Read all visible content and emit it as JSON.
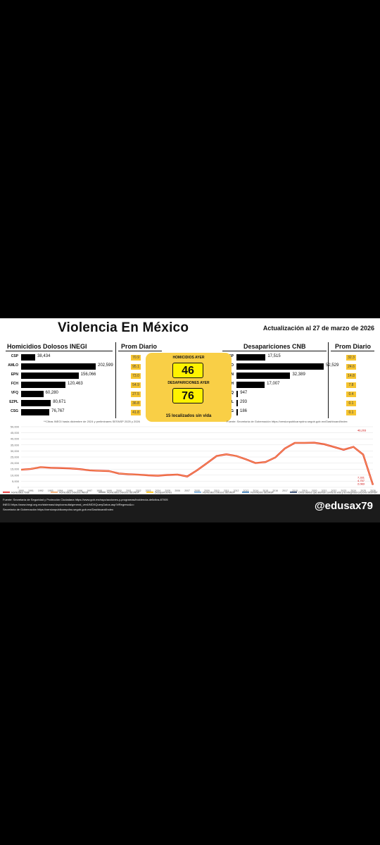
{
  "header": {
    "title": "Violencia En México",
    "updated": "Actualización al 27 de marzo de 2026"
  },
  "homicidios": {
    "title": "Homicidios Dolosos INEGI",
    "prom_title": "Prom Diario",
    "note": "**Cifras INEGI hasta diciembre de 2024 y preliminares SESNSP 2025 y 2026",
    "rows": [
      {
        "label": "CSP",
        "value_text": "38,434",
        "value": 38434,
        "prom": "70.9"
      },
      {
        "label": "AMLO",
        "value_text": "202,599",
        "value": 202599,
        "prom": "95.1"
      },
      {
        "label": "EPN",
        "value_text": "156,066",
        "value": 156066,
        "prom": "73.0"
      },
      {
        "label": "FCH",
        "value_text": "120,463",
        "value": 120463,
        "prom": "54.9"
      },
      {
        "label": "VFQ",
        "value_text": "60,280",
        "value": 60280,
        "prom": "27.5"
      },
      {
        "label": "EZPL",
        "value_text": "80,671",
        "value": 80671,
        "prom": "36.8"
      },
      {
        "label": "CSG",
        "value_text": "76,767",
        "value": 76767,
        "prom": "41.8"
      }
    ]
  },
  "desapariciones": {
    "title": "Desapariciones CNB",
    "prom_title": "Prom Diario",
    "note": "Fuente: Secretaría de Gobernación https://versionpublicarnpdno.segob.gob.mx/Dashboard/Index",
    "rows": [
      {
        "label": "CSP",
        "value_text": "17,515",
        "value": 17515,
        "prom": "32.3"
      },
      {
        "label": "AMLO",
        "value_text": "52,529",
        "value": 52529,
        "prom": "24.6"
      },
      {
        "label": "EPN",
        "value_text": "32,389",
        "value": 32389,
        "prom": "14.8"
      },
      {
        "label": "FCH",
        "value_text": "17,007",
        "value": 17007,
        "prom": "7.8"
      },
      {
        "label": "VHQ",
        "value_text": "947",
        "value": 947,
        "prom": "0.4"
      },
      {
        "label": "EZPL",
        "value_text": "293",
        "value": 293,
        "prom": "0.1"
      },
      {
        "label": "CSG",
        "value_text": "186",
        "value": 186,
        "prom": "0.1"
      }
    ]
  },
  "center": {
    "hom_label": "HOMICIDIOS AYER",
    "hom_value": "46",
    "des_label": "DESAPARICIONES AYER",
    "des_value": "76",
    "footer": "15 localizados sin vida"
  },
  "colors": {
    "accent_yellow": "#f9cf46",
    "number_yellow": "#fff200",
    "homicidios_total": "#e41a1c",
    "dark": "#111111"
  },
  "chart_data": {
    "type": "line",
    "x": [
      "1990",
      "1991",
      "1992",
      "1993",
      "1994",
      "1995",
      "1996",
      "1997",
      "1998",
      "1999",
      "2000",
      "2001",
      "2002",
      "2003",
      "2004",
      "2005",
      "2006",
      "2007",
      "2008",
      "2009",
      "2010",
      "2011",
      "2012",
      "2013",
      "2014",
      "2015",
      "2016",
      "2017",
      "2018",
      "2019",
      "2020",
      "2021",
      "2022",
      "2023",
      "2024",
      "2025",
      "2026"
    ],
    "ylim": [
      0,
      50000
    ],
    "yticks": [
      "0",
      "5,000",
      "10,000",
      "15,000",
      "20,000",
      "25,000",
      "30,000",
      "35,000",
      "40,000",
      "45,000",
      "50,000"
    ],
    "series": [
      {
        "name": "Homicidios Total",
        "color": "#e41a1c",
        "values": [
          14500,
          15200,
          16600,
          16100,
          15900,
          15600,
          15000,
          14000,
          13600,
          13400,
          11400,
          10800,
          10400,
          9900,
          9600,
          10200,
          10500,
          8900,
          14000,
          19800,
          25800,
          27200,
          25900,
          23100,
          20000,
          20800,
          24600,
          32100,
          36700,
          36700,
          36800,
          35600,
          33300,
          31000,
          33400,
          27000,
          2000
        ]
      },
      {
        "name": "Homicidios Dolosos INEGI",
        "color": "#f4a460",
        "values": [
          14500,
          15200,
          16600,
          16100,
          15900,
          15600,
          15000,
          14000,
          13600,
          13400,
          11400,
          10800,
          10400,
          9900,
          9600,
          10200,
          10500,
          8900,
          14000,
          19800,
          25800,
          27200,
          25900,
          23100,
          20000,
          20800,
          24600,
          32100,
          36700,
          36700,
          36800,
          35600,
          33300,
          31000,
          33400,
          27000,
          2000
        ]
      },
      {
        "name": "Homicidios Dolosos SESNSP",
        "color": "#9e9e9e",
        "values": [
          null,
          null,
          null,
          null,
          null,
          null,
          null,
          null,
          null,
          null,
          null,
          null,
          null,
          null,
          null,
          null,
          null,
          null,
          null,
          null,
          null,
          null,
          null,
          null,
          null,
          null,
          null,
          null,
          null,
          null,
          null,
          null,
          null,
          null,
          null,
          null,
          null
        ]
      },
      {
        "name": "Desapariciones",
        "color": "#ffc000",
        "values": [
          null,
          null,
          null,
          null,
          null,
          null,
          null,
          null,
          null,
          null,
          null,
          null,
          null,
          null,
          null,
          null,
          null,
          null,
          null,
          null,
          null,
          null,
          null,
          null,
          null,
          null,
          null,
          null,
          null,
          null,
          null,
          null,
          null,
          null,
          null,
          null,
          null
        ]
      },
      {
        "name": "Homicidios Dolosos SESNSP",
        "color": "#6fa8dc",
        "values": [
          null,
          null,
          null,
          null,
          null,
          null,
          null,
          null,
          null,
          null,
          null,
          null,
          null,
          null,
          null,
          null,
          null,
          null,
          null,
          null,
          null,
          null,
          null,
          null,
          null,
          null,
          null,
          null,
          null,
          null,
          null,
          null,
          null,
          null,
          null,
          null,
          null
        ]
      },
      {
        "name": "Feminicidio SESNSP",
        "color": "#2e75b6",
        "values": [
          null,
          null,
          null,
          null,
          null,
          null,
          null,
          null,
          null,
          null,
          null,
          null,
          null,
          null,
          null,
          null,
          null,
          null,
          null,
          null,
          null,
          null,
          null,
          null,
          null,
          null,
          null,
          null,
          null,
          null,
          null,
          null,
          null,
          null,
          null,
          null,
          null
        ]
      },
      {
        "name": "Otros delitos que atentan contra la vida y la integridad corporal SESNSP",
        "color": "#1f3864",
        "values": [
          null,
          null,
          null,
          null,
          null,
          null,
          null,
          null,
          null,
          null,
          null,
          null,
          null,
          null,
          null,
          null,
          null,
          null,
          null,
          null,
          null,
          null,
          null,
          null,
          null,
          null,
          null,
          null,
          null,
          null,
          null,
          null,
          null,
          null,
          null,
          null,
          null
        ]
      }
    ],
    "point_labels": [
      "46,203",
      "7,331",
      "2,083",
      "4,757"
    ]
  },
  "footer": {
    "sources": [
      "Fuente: Secretaría de Seguridad y Protección Ciudadana https://www.gob.mx/sspc/acciones-y-programas/incidencia-delictiva-87005",
      "INEGI https://www.inegi.org.mx/sistemas/olap/consulta/general_ver4/MDXQueryDatos.asp?#Regreso&c=",
      "Secretaría de Gobernación https://versionpublicarnpdno.segob.gob.mx/Dashboard/Index"
    ],
    "handle": "@edusax79"
  }
}
